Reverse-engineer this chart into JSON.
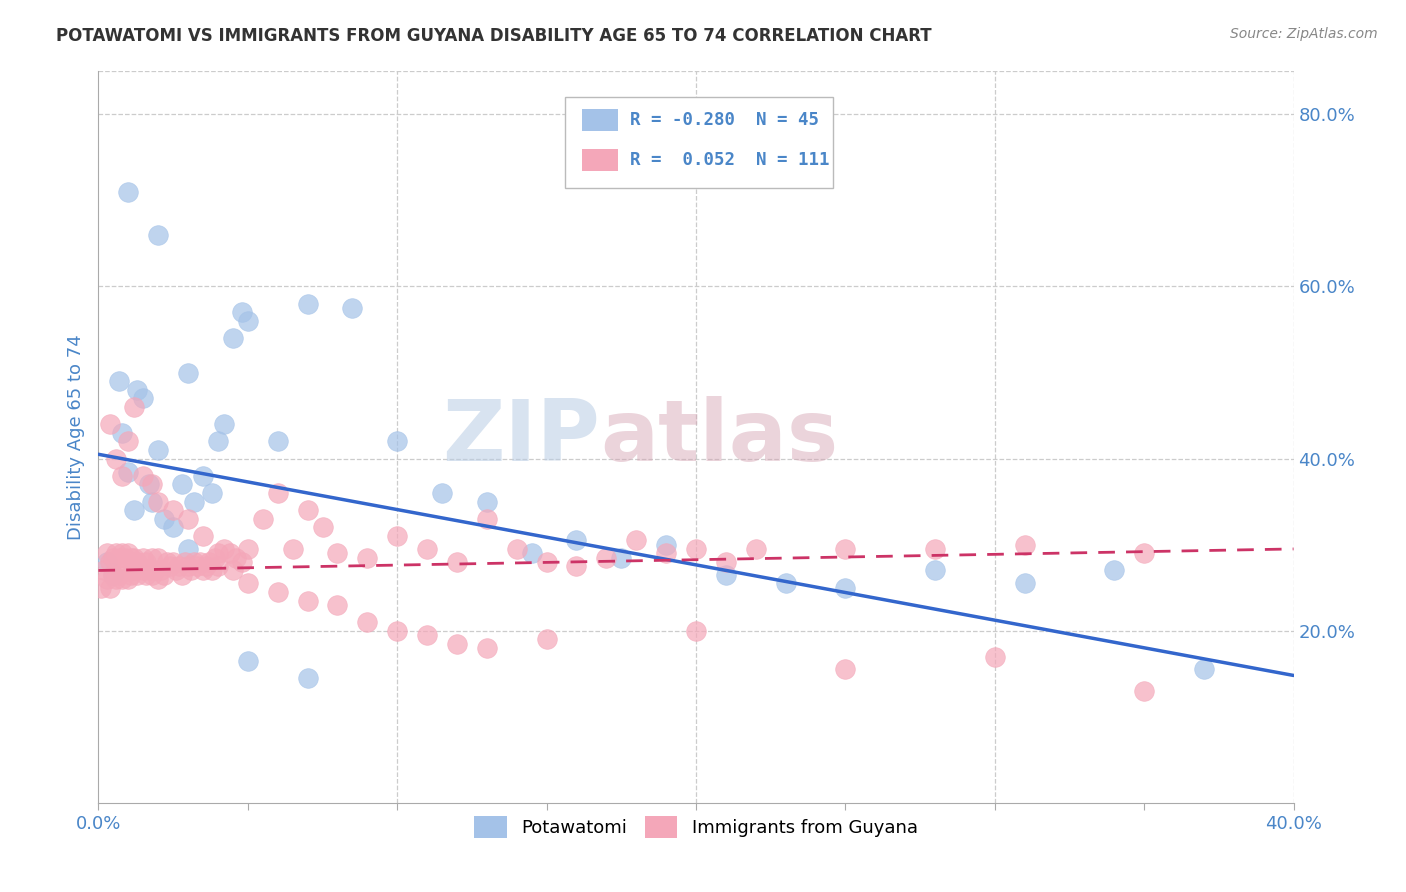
{
  "title": "POTAWATOMI VS IMMIGRANTS FROM GUYANA DISABILITY AGE 65 TO 74 CORRELATION CHART",
  "source": "Source: ZipAtlas.com",
  "ylabel": "Disability Age 65 to 74",
  "xlim": [
    0.0,
    0.4
  ],
  "ylim": [
    0.0,
    0.85
  ],
  "xticks": [
    0.0,
    0.05,
    0.1,
    0.15,
    0.2,
    0.25,
    0.3,
    0.35,
    0.4
  ],
  "xtick_labels": [
    "0.0%",
    "",
    "",
    "",
    "",
    "",
    "",
    "",
    "40.0%"
  ],
  "yticks_right": [
    0.2,
    0.4,
    0.6,
    0.8
  ],
  "ytick_labels_right": [
    "20.0%",
    "40.0%",
    "60.0%",
    "80.0%"
  ],
  "blue_color": "#a4c2e8",
  "pink_color": "#f4a7b9",
  "blue_line_color": "#3366cc",
  "pink_line_color": "#cc3366",
  "watermark_zip": "ZIP",
  "watermark_atlas": "atlas",
  "legend_R_blue": "R = -0.280",
  "legend_N_blue": "N = 45",
  "legend_R_pink": "R =  0.052",
  "legend_N_pink": "N = 111",
  "blue_scatter_x": [
    0.003,
    0.005,
    0.007,
    0.008,
    0.01,
    0.012,
    0.013,
    0.015,
    0.017,
    0.018,
    0.02,
    0.022,
    0.025,
    0.028,
    0.03,
    0.032,
    0.035,
    0.038,
    0.04,
    0.042,
    0.045,
    0.048,
    0.05,
    0.06,
    0.07,
    0.085,
    0.1,
    0.115,
    0.13,
    0.145,
    0.16,
    0.175,
    0.19,
    0.21,
    0.23,
    0.25,
    0.28,
    0.31,
    0.34,
    0.37,
    0.01,
    0.02,
    0.03,
    0.05,
    0.07
  ],
  "blue_scatter_y": [
    0.28,
    0.265,
    0.49,
    0.43,
    0.385,
    0.34,
    0.48,
    0.47,
    0.37,
    0.35,
    0.41,
    0.33,
    0.32,
    0.37,
    0.295,
    0.35,
    0.38,
    0.36,
    0.42,
    0.44,
    0.54,
    0.57,
    0.56,
    0.42,
    0.58,
    0.575,
    0.42,
    0.36,
    0.35,
    0.29,
    0.305,
    0.285,
    0.3,
    0.265,
    0.255,
    0.25,
    0.27,
    0.255,
    0.27,
    0.155,
    0.71,
    0.66,
    0.5,
    0.165,
    0.145
  ],
  "pink_scatter_x": [
    0.001,
    0.002,
    0.003,
    0.003,
    0.004,
    0.004,
    0.005,
    0.005,
    0.006,
    0.006,
    0.007,
    0.007,
    0.008,
    0.008,
    0.009,
    0.009,
    0.01,
    0.01,
    0.011,
    0.011,
    0.012,
    0.012,
    0.013,
    0.013,
    0.014,
    0.015,
    0.015,
    0.016,
    0.016,
    0.017,
    0.018,
    0.018,
    0.019,
    0.02,
    0.02,
    0.021,
    0.022,
    0.023,
    0.024,
    0.025,
    0.026,
    0.027,
    0.028,
    0.029,
    0.03,
    0.031,
    0.032,
    0.033,
    0.034,
    0.035,
    0.036,
    0.037,
    0.038,
    0.039,
    0.04,
    0.042,
    0.044,
    0.046,
    0.048,
    0.05,
    0.055,
    0.06,
    0.065,
    0.07,
    0.075,
    0.08,
    0.09,
    0.1,
    0.11,
    0.12,
    0.13,
    0.14,
    0.15,
    0.16,
    0.17,
    0.18,
    0.19,
    0.2,
    0.21,
    0.22,
    0.25,
    0.28,
    0.31,
    0.35,
    0.004,
    0.006,
    0.008,
    0.01,
    0.012,
    0.015,
    0.018,
    0.02,
    0.025,
    0.03,
    0.035,
    0.04,
    0.045,
    0.05,
    0.06,
    0.07,
    0.08,
    0.09,
    0.1,
    0.11,
    0.12,
    0.13,
    0.15,
    0.2,
    0.25,
    0.3,
    0.35
  ],
  "pink_scatter_y": [
    0.25,
    0.27,
    0.26,
    0.29,
    0.25,
    0.28,
    0.265,
    0.285,
    0.26,
    0.29,
    0.265,
    0.285,
    0.26,
    0.29,
    0.27,
    0.285,
    0.26,
    0.29,
    0.265,
    0.285,
    0.27,
    0.285,
    0.265,
    0.28,
    0.275,
    0.27,
    0.285,
    0.265,
    0.28,
    0.27,
    0.265,
    0.285,
    0.27,
    0.26,
    0.285,
    0.27,
    0.265,
    0.28,
    0.275,
    0.28,
    0.27,
    0.275,
    0.265,
    0.28,
    0.275,
    0.27,
    0.28,
    0.275,
    0.28,
    0.27,
    0.275,
    0.28,
    0.27,
    0.285,
    0.275,
    0.295,
    0.29,
    0.285,
    0.28,
    0.295,
    0.33,
    0.36,
    0.295,
    0.34,
    0.32,
    0.29,
    0.285,
    0.31,
    0.295,
    0.28,
    0.33,
    0.295,
    0.28,
    0.275,
    0.285,
    0.305,
    0.29,
    0.295,
    0.28,
    0.295,
    0.295,
    0.295,
    0.3,
    0.29,
    0.44,
    0.4,
    0.38,
    0.42,
    0.46,
    0.38,
    0.37,
    0.35,
    0.34,
    0.33,
    0.31,
    0.29,
    0.27,
    0.255,
    0.245,
    0.235,
    0.23,
    0.21,
    0.2,
    0.195,
    0.185,
    0.18,
    0.19,
    0.2,
    0.155,
    0.17,
    0.13
  ],
  "blue_trend_x": [
    0.0,
    0.4
  ],
  "blue_trend_y": [
    0.405,
    0.148
  ],
  "pink_trend_x": [
    0.0,
    0.4
  ],
  "pink_trend_y": [
    0.27,
    0.295
  ],
  "grid_color": "#cccccc",
  "background_color": "#ffffff",
  "title_color": "#333333",
  "axis_label_color": "#4a86c8",
  "tick_label_color": "#4a86c8"
}
